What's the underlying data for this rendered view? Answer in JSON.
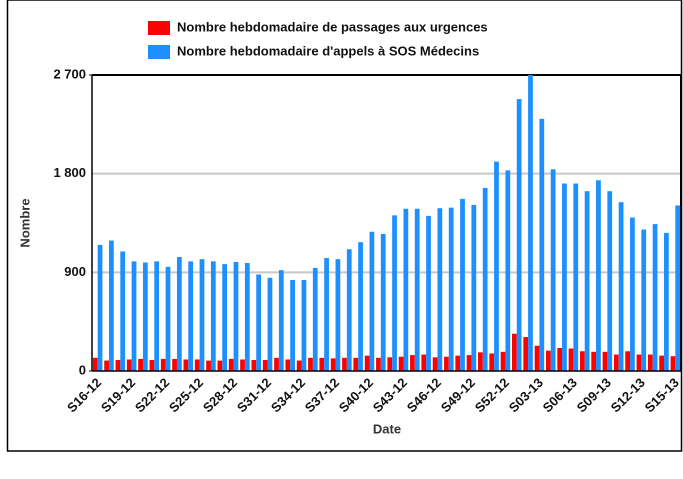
{
  "chart_data": {
    "type": "bar",
    "series": [
      {
        "name": "Nombre hebdomadaire de passages aux urgences",
        "color": "#ff0000",
        "values": [
          120,
          95,
          100,
          105,
          110,
          100,
          110,
          110,
          105,
          105,
          95,
          95,
          110,
          105,
          100,
          100,
          120,
          105,
          95,
          120,
          120,
          115,
          120,
          120,
          140,
          120,
          125,
          130,
          145,
          150,
          125,
          130,
          140,
          145,
          170,
          160,
          175,
          340,
          310,
          230,
          185,
          210,
          205,
          180,
          175,
          175,
          150,
          180,
          150,
          150,
          140,
          135
        ]
      },
      {
        "name": "Nombre hebdomadaire d'appels à SOS Médecins",
        "color": "#1e8fff",
        "values": [
          1150,
          1190,
          1090,
          1000,
          990,
          1000,
          950,
          1040,
          1000,
          1020,
          1000,
          975,
          995,
          985,
          880,
          850,
          920,
          830,
          830,
          940,
          1030,
          1020,
          1110,
          1175,
          1270,
          1250,
          1420,
          1480,
          1480,
          1415,
          1485,
          1490,
          1570,
          1515,
          1670,
          1910,
          1830,
          2480,
          2700,
          2300,
          1840,
          1710,
          1710,
          1640,
          1740,
          1640,
          1540,
          1400,
          1290,
          1340,
          1260,
          1510
        ]
      }
    ],
    "categories": [
      "S16-12",
      null,
      null,
      "S19-12",
      null,
      null,
      "S22-12",
      null,
      null,
      "S25-12",
      null,
      null,
      "S28-12",
      null,
      null,
      "S31-12",
      null,
      null,
      "S34-12",
      null,
      null,
      "S37-12",
      null,
      null,
      "S40-12",
      null,
      null,
      "S43-12",
      null,
      null,
      "S46-12",
      null,
      null,
      "S49-12",
      null,
      null,
      "S52-12",
      null,
      null,
      "S03-13",
      null,
      null,
      "S06-13",
      null,
      null,
      "S09-13",
      null,
      null,
      "S12-13",
      null,
      null,
      "S15-13"
    ],
    "xlabel": "Date",
    "ylabel": "Nombre",
    "ylim": [
      0,
      2700
    ],
    "yticks": [
      0,
      900,
      {
        "value": 1800,
        "label": "1 800"
      },
      {
        "value": 2700,
        "label": "2 700"
      }
    ],
    "grid": true
  }
}
